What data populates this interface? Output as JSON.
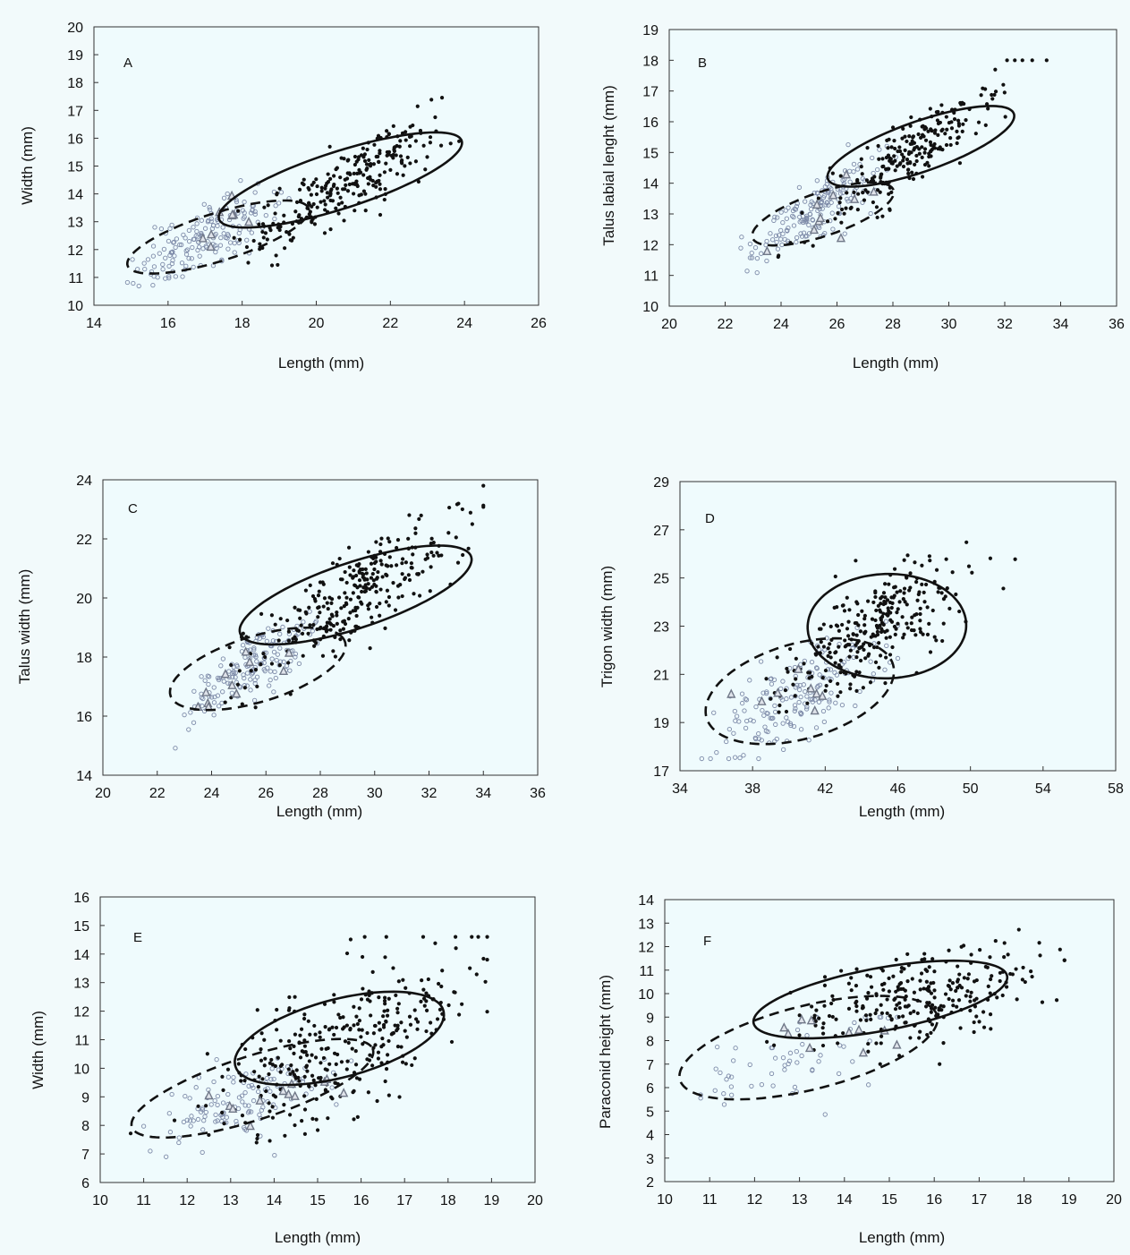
{
  "figure": {
    "bg": "#f2fafb",
    "plot_bg": "#effbfd",
    "colors": {
      "filled": "#111111",
      "open": "#7d8aa8",
      "triangle": "#707888",
      "ellipse": "#111111"
    }
  },
  "chart_data": [
    {
      "type": "scatter",
      "panel": "A",
      "xlabel": "Length (mm)",
      "ylabel": "Width (mm)",
      "xlim": [
        14,
        26
      ],
      "ylim": [
        10,
        20
      ],
      "xticks": [
        14,
        16,
        18,
        20,
        22,
        24,
        26
      ],
      "yticks": [
        10,
        11,
        12,
        13,
        14,
        15,
        16,
        17,
        18,
        19,
        20
      ],
      "grid": false,
      "legend": "none",
      "series": [
        {
          "marker": "filled-circle",
          "n": 260,
          "center": [
            20.8,
            14.4
          ],
          "spread": [
            1.3,
            1.15
          ],
          "rho": 0.85,
          "range": [
            [
              17.2,
              24.2
            ],
            [
              10.8,
              18.2
            ]
          ]
        },
        {
          "marker": "open-circle",
          "n": 170,
          "center": [
            17.0,
            12.4
          ],
          "spread": [
            1.0,
            0.85
          ],
          "rho": 0.8,
          "range": [
            [
              14.8,
              19.5
            ],
            [
              10.4,
              16.6
            ]
          ]
        },
        {
          "marker": "triangle",
          "n": 9,
          "center": [
            17.3,
            12.8
          ],
          "spread": [
            0.5,
            0.5
          ],
          "rho": 0.7,
          "range": [
            [
              16.5,
              18.5
            ],
            [
              11.2,
              14.2
            ]
          ]
        }
      ],
      "ellipses": [
        {
          "style": "solid",
          "center": [
            20.65,
            14.5
          ],
          "semi_axes": [
            3.7,
            0.95
          ],
          "angle_deg": 29
        },
        {
          "style": "dashed",
          "center": [
            17.35,
            12.45
          ],
          "semi_axes": [
            2.75,
            0.8
          ],
          "angle_deg": 29
        }
      ]
    },
    {
      "type": "scatter",
      "panel": "B",
      "xlabel": "Length (mm)",
      "ylabel": "Talus labial lenght (mm)",
      "xlim": [
        20,
        36
      ],
      "ylim": [
        10,
        19
      ],
      "xticks": [
        20,
        22,
        24,
        26,
        28,
        30,
        32,
        34,
        36
      ],
      "yticks": [
        10,
        11,
        12,
        13,
        14,
        15,
        16,
        17,
        18,
        19
      ],
      "grid": false,
      "legend": "none",
      "series": [
        {
          "marker": "filled-circle",
          "n": 240,
          "center": [
            28.8,
            15.1
          ],
          "spread": [
            1.6,
            1.2
          ],
          "rho": 0.88,
          "range": [
            [
              23,
              34
            ],
            [
              11.6,
              18
            ]
          ]
        },
        {
          "marker": "open-circle",
          "n": 170,
          "center": [
            25.2,
            13.1
          ],
          "spread": [
            1.1,
            0.8
          ],
          "rho": 0.82,
          "range": [
            [
              22,
              28.5
            ],
            [
              10.8,
              15.5
            ]
          ]
        },
        {
          "marker": "triangle",
          "n": 10,
          "center": [
            25.8,
            13.3
          ],
          "spread": [
            1.0,
            0.7
          ],
          "rho": 0.8,
          "range": [
            [
              23.5,
              28.5
            ],
            [
              11.5,
              14.5
            ]
          ]
        }
      ],
      "ellipses": [
        {
          "style": "solid",
          "center": [
            29.0,
            15.2
          ],
          "semi_axes": [
            3.85,
            0.75
          ],
          "angle_deg": 32
        },
        {
          "style": "dashed",
          "center": [
            25.5,
            13.0
          ],
          "semi_axes": [
            2.9,
            0.65
          ],
          "angle_deg": 32
        }
      ]
    },
    {
      "type": "scatter",
      "panel": "C",
      "xlabel": "Length (mm)",
      "ylabel": "Talus width (mm)",
      "xlim": [
        20,
        36
      ],
      "ylim": [
        14,
        24
      ],
      "xticks": [
        20,
        22,
        24,
        26,
        28,
        30,
        32,
        34,
        36
      ],
      "yticks": [
        14,
        16,
        18,
        20,
        22,
        24
      ],
      "grid": false,
      "legend": "none",
      "series": [
        {
          "marker": "filled-circle",
          "n": 300,
          "center": [
            29.3,
            20.0
          ],
          "spread": [
            2.0,
            1.35
          ],
          "rho": 0.85,
          "range": [
            [
              24.5,
              34
            ],
            [
              16.0,
              23.8
            ]
          ]
        },
        {
          "marker": "open-circle",
          "n": 160,
          "center": [
            25.4,
            17.6
          ],
          "spread": [
            1.2,
            0.9
          ],
          "rho": 0.8,
          "range": [
            [
              21.4,
              29.2
            ],
            [
              14.8,
              20.2
            ]
          ]
        },
        {
          "marker": "triangle",
          "n": 11,
          "center": [
            25.4,
            17.6
          ],
          "spread": [
            1.3,
            0.9
          ],
          "rho": 0.8,
          "range": [
            [
              23.5,
              29
            ],
            [
              16.3,
              20
            ]
          ]
        }
      ],
      "ellipses": [
        {
          "style": "solid",
          "center": [
            29.3,
            20.1
          ],
          "semi_axes": [
            4.75,
            1.05
          ],
          "angle_deg": 28
        },
        {
          "style": "dashed",
          "center": [
            25.7,
            17.6
          ],
          "semi_axes": [
            3.55,
            1.05
          ],
          "angle_deg": 28
        }
      ]
    },
    {
      "type": "scatter",
      "panel": "D",
      "xlabel": "Length (mm)",
      "ylabel": "Trigon width (mm)",
      "xlim": [
        34,
        58
      ],
      "ylim": [
        17,
        29
      ],
      "xticks": [
        34,
        38,
        42,
        46,
        50,
        54,
        58
      ],
      "yticks": [
        17,
        19,
        21,
        23,
        25,
        27,
        29
      ],
      "grid": false,
      "legend": "none",
      "series": [
        {
          "marker": "filled-circle",
          "n": 290,
          "center": [
            44.6,
            22.9
          ],
          "spread": [
            2.4,
            1.4
          ],
          "rho": 0.7,
          "range": [
            [
              36,
              54.5
            ],
            [
              17.5,
              27.1
            ]
          ]
        },
        {
          "marker": "open-circle",
          "n": 170,
          "center": [
            40.2,
            20.0
          ],
          "spread": [
            2.2,
            1.3
          ],
          "rho": 0.65,
          "range": [
            [
              35.2,
              46
            ],
            [
              17.5,
              23.2
            ]
          ]
        },
        {
          "marker": "triangle",
          "n": 8,
          "center": [
            40.5,
            19.8
          ],
          "spread": [
            2.2,
            1.0
          ],
          "rho": 0.5,
          "range": [
            [
              36.5,
              44
            ],
            [
              17.6,
              21.2
            ]
          ]
        }
      ],
      "ellipses": [
        {
          "style": "solid",
          "center": [
            45.4,
            23.0
          ],
          "semi_axes": [
            4.4,
            2.15
          ],
          "angle_deg": 35
        },
        {
          "style": "dashed",
          "center": [
            40.6,
            20.3
          ],
          "semi_axes": [
            5.7,
            1.85
          ],
          "angle_deg": 33
        }
      ]
    },
    {
      "type": "scatter",
      "panel": "E",
      "xlabel": "Length (mm)",
      "ylabel": "Width (mm)",
      "xlim": [
        10,
        20
      ],
      "ylim": [
        6,
        16
      ],
      "xticks": [
        10,
        11,
        12,
        13,
        14,
        15,
        16,
        17,
        18,
        19,
        20
      ],
      "yticks": [
        6,
        7,
        8,
        9,
        10,
        11,
        12,
        13,
        14,
        15,
        16
      ],
      "grid": false,
      "legend": "none",
      "series": [
        {
          "marker": "filled-circle",
          "n": 330,
          "center": [
            15.6,
            10.9
          ],
          "spread": [
            1.45,
            1.5
          ],
          "rho": 0.65,
          "range": [
            [
              10.7,
              18.9
            ],
            [
              7.4,
              14.6
            ]
          ]
        },
        {
          "marker": "open-circle",
          "n": 120,
          "center": [
            13.3,
            8.9
          ],
          "spread": [
            1.0,
            0.75
          ],
          "rho": 0.6,
          "range": [
            [
              11,
              17.6
            ],
            [
              6.9,
              13.5
            ]
          ]
        },
        {
          "marker": "triangle",
          "n": 12,
          "center": [
            14.0,
            8.9
          ],
          "spread": [
            1.0,
            0.45
          ],
          "rho": 0.5,
          "range": [
            [
              12.5,
              15.6
            ],
            [
              7.9,
              9.6
            ]
          ]
        }
      ],
      "ellipses": [
        {
          "style": "solid",
          "center": [
            15.5,
            11.05
          ],
          "semi_axes": [
            2.6,
            1.3
          ],
          "angle_deg": 26
        },
        {
          "style": "dashed",
          "center": [
            13.5,
            9.3
          ],
          "semi_axes": [
            3.1,
            1.05
          ],
          "angle_deg": 28
        }
      ]
    },
    {
      "type": "scatter",
      "panel": "F",
      "xlabel": "Length (mm)",
      "ylabel": "Paraconid height (mm)",
      "xlim": [
        10,
        20
      ],
      "ylim": [
        2,
        14
      ],
      "xticks": [
        10,
        11,
        12,
        13,
        14,
        15,
        16,
        17,
        18,
        19,
        20
      ],
      "yticks": [
        2,
        3,
        4,
        5,
        6,
        7,
        8,
        9,
        10,
        11,
        12,
        13,
        14
      ],
      "grid": false,
      "legend": "none",
      "series": [
        {
          "marker": "filled-circle",
          "n": 260,
          "center": [
            15.6,
            9.9
          ],
          "spread": [
            1.4,
            1.15
          ],
          "rho": 0.5,
          "range": [
            [
              11.3,
              18.9
            ],
            [
              7.0,
              13.0
            ]
          ]
        },
        {
          "marker": "open-circle",
          "n": 60,
          "center": [
            13.0,
            7.4
          ],
          "spread": [
            1.2,
            1.2
          ],
          "rho": 0.5,
          "range": [
            [
              10.8,
              17.7
            ],
            [
              3.1,
              9.0
            ]
          ]
        },
        {
          "marker": "triangle",
          "n": 10,
          "center": [
            13.9,
            8.2
          ],
          "spread": [
            0.7,
            0.5
          ],
          "rho": 0.3,
          "range": [
            [
              12.5,
              15.2
            ],
            [
              7.2,
              9.0
            ]
          ]
        }
      ],
      "ellipses": [
        {
          "style": "solid",
          "center": [
            14.8,
            9.75
          ],
          "semi_axes": [
            2.95,
            1.3
          ],
          "angle_deg": 18
        },
        {
          "style": "dashed",
          "center": [
            13.2,
            7.7
          ],
          "semi_axes": [
            3.1,
            1.7
          ],
          "angle_deg": 25
        }
      ]
    }
  ]
}
